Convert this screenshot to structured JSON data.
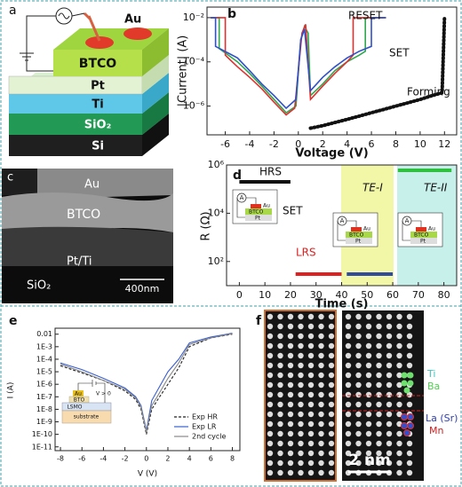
{
  "panel_a": {
    "letter": "a",
    "electrode": "Au",
    "layers": [
      "BTCO",
      "Pt",
      "Ti",
      "SiO₂",
      "Si"
    ]
  },
  "panel_c": {
    "letter": "c",
    "labels": [
      "Au",
      "BTCO",
      "Pt/Ti",
      "SiO₂"
    ],
    "scale_bar": "400nm"
  },
  "panel_f": {
    "letter": "f",
    "labels": [
      "Ti",
      "Ba",
      "La (Sr)",
      "Mn"
    ],
    "scale_bar": "2 nm"
  },
  "chart_data": [
    {
      "type": "line",
      "letter": "b",
      "xlabel": "Voltage (V)",
      "ylabel": "|Current| (A)",
      "log_y": true,
      "xlim": [
        -7.5,
        13
      ],
      "ylim": [
        5e-08,
        0.03
      ],
      "xticks": [
        -6,
        -4,
        -2,
        0,
        2,
        4,
        6,
        8,
        10,
        12
      ],
      "yticks": [
        {
          "value": 1e-06,
          "label": "10⁻⁶"
        },
        {
          "value": 0.0001,
          "label": "10⁻⁴"
        },
        {
          "value": 0.01,
          "label": "10⁻²"
        }
      ],
      "annotations": [
        "RESET",
        "SET",
        "Forming"
      ],
      "series": [
        {
          "color": "#111111",
          "x": [
            1,
            2,
            3,
            4,
            5,
            6,
            7,
            8,
            9,
            10,
            11,
            11.8,
            12
          ],
          "values": [
            1e-07,
            1.3e-07,
            1.8e-07,
            2.5e-07,
            3.5e-07,
            5e-07,
            7e-07,
            1e-06,
            1.4e-06,
            2e-06,
            3e-06,
            4e-06,
            0.01
          ]
        },
        {
          "color": "#2fa84f",
          "x": [
            -7.2,
            -6.5,
            -6.5,
            -5,
            -4,
            -3,
            -2,
            -1,
            -0.2,
            0.2,
            0.5,
            0.8,
            1,
            2,
            3,
            4,
            5,
            5.5,
            5.5,
            7
          ],
          "values": [
            0.01,
            0.01,
            0.0004,
            0.0001,
            3e-05,
            8e-06,
            2e-06,
            5e-07,
            1e-06,
            0.001,
            0.004,
            0.002,
            3e-06,
            1e-05,
            4e-05,
            0.0001,
            0.0002,
            0.0003,
            0.01,
            0.01
          ]
        },
        {
          "color": "#e03030",
          "x": [
            -7.2,
            -6,
            -6,
            -5,
            -4,
            -3,
            -2,
            -1,
            -0.3,
            0.3,
            0.6,
            1,
            2,
            3,
            4,
            4.5,
            4.5,
            7.2
          ],
          "values": [
            0.01,
            0.01,
            0.0002,
            6e-05,
            2e-05,
            6e-06,
            1.5e-06,
            4e-07,
            8e-07,
            0.002,
            0.005,
            2e-06,
            8e-06,
            3e-05,
            0.0001,
            0.0002,
            0.01,
            0.01
          ]
        },
        {
          "color": "#3050c8",
          "x": [
            -7.2,
            -6.8,
            -6.8,
            -5,
            -4,
            -3,
            -2,
            -1,
            -0.2,
            0.2,
            0.5,
            1,
            2,
            3,
            4,
            5,
            6,
            6,
            7.2
          ],
          "values": [
            0.01,
            0.01,
            0.0005,
            0.00015,
            4e-05,
            1e-05,
            3e-06,
            8e-07,
            2e-06,
            0.001,
            0.003,
            5e-06,
            2e-05,
            6e-05,
            0.00015,
            0.0003,
            0.0005,
            0.01,
            0.01
          ]
        }
      ]
    },
    {
      "type": "line",
      "letter": "d",
      "xlabel": "Time (s)",
      "ylabel": "R (Ω)",
      "log_y": true,
      "xlim": [
        -5,
        85
      ],
      "ylim": [
        10,
        1000000
      ],
      "xticks": [
        0,
        10,
        20,
        30,
        40,
        50,
        60,
        70,
        80
      ],
      "yticks": [
        {
          "value": 100,
          "label": "10²"
        },
        {
          "value": 10000,
          "label": "10⁴"
        },
        {
          "value": 1000000,
          "label": "10⁶"
        }
      ],
      "annotations": [
        "HRS",
        "SET",
        "LRS",
        "TE-I",
        "TE-II"
      ],
      "inset_labels": [
        "A",
        "Au",
        "BTCO",
        "Pt"
      ],
      "series": [
        {
          "color": "#111111",
          "x": [
            0,
            20
          ],
          "values": [
            200000,
            200000
          ]
        },
        {
          "color": "#e02020",
          "x": [
            22,
            40
          ],
          "values": [
            30,
            30
          ]
        },
        {
          "color": "#304aa0",
          "x": [
            42,
            60
          ],
          "values": [
            30,
            30
          ]
        },
        {
          "color": "#30c040",
          "x": [
            62,
            83
          ],
          "values": [
            600000,
            600000
          ]
        }
      ]
    },
    {
      "type": "line",
      "letter": "e",
      "xlabel": "V (V)",
      "ylabel": "I (A)",
      "log_y": true,
      "legend": "lower right",
      "xlim": [
        -8.5,
        8.7
      ],
      "ylim": [
        5e-12,
        0.03
      ],
      "xticks": [
        -8,
        -6,
        -4,
        -2,
        0,
        2,
        4,
        6,
        8
      ],
      "yticks": [
        {
          "value": 1e-11,
          "label": "1E-11"
        },
        {
          "value": 1e-10,
          "label": "1E-10"
        },
        {
          "value": 1e-09,
          "label": "1E-9"
        },
        {
          "value": 1e-08,
          "label": "1E-8"
        },
        {
          "value": 1e-07,
          "label": "1E-7"
        },
        {
          "value": 1e-06,
          "label": "1E-6"
        },
        {
          "value": 1e-05,
          "label": "1E-5"
        },
        {
          "value": 0.0001,
          "label": "1E-4"
        },
        {
          "value": 0.001,
          "label": "1E-3"
        },
        0.01
      ],
      "inset_labels": [
        "Au",
        "BTO",
        "LSMO",
        "substrate",
        "V > 0"
      ],
      "x": [
        -8,
        -6,
        -4,
        -2,
        -1,
        -0.5,
        0,
        0.5,
        1,
        2,
        3,
        4,
        6,
        8
      ],
      "series": [
        {
          "name": "Exp HR",
          "color": "#222222",
          "values": [
            3e-05,
            8e-06,
            2e-06,
            3e-07,
            6e-08,
            1e-08,
            1e-10,
            1e-08,
            5e-08,
            1e-06,
            2e-05,
            0.001,
            0.005,
            0.01
          ]
        },
        {
          "name": "Exp LR",
          "color": "#3a5fcd",
          "values": [
            5e-05,
            1.5e-05,
            3e-06,
            5e-07,
            1e-07,
            2e-08,
            2e-10,
            5e-08,
            3e-07,
            1e-05,
            0.0001,
            0.002,
            0.006,
            0.012
          ]
        },
        {
          "name": "2nd cycle",
          "color": "#888888",
          "values": [
            4e-05,
            1e-05,
            2e-06,
            4e-07,
            8e-08,
            1.5e-08,
            1.5e-10,
            2e-08,
            1e-07,
            3e-06,
            5e-05,
            0.0015,
            0.005,
            0.011
          ]
        }
      ]
    }
  ]
}
